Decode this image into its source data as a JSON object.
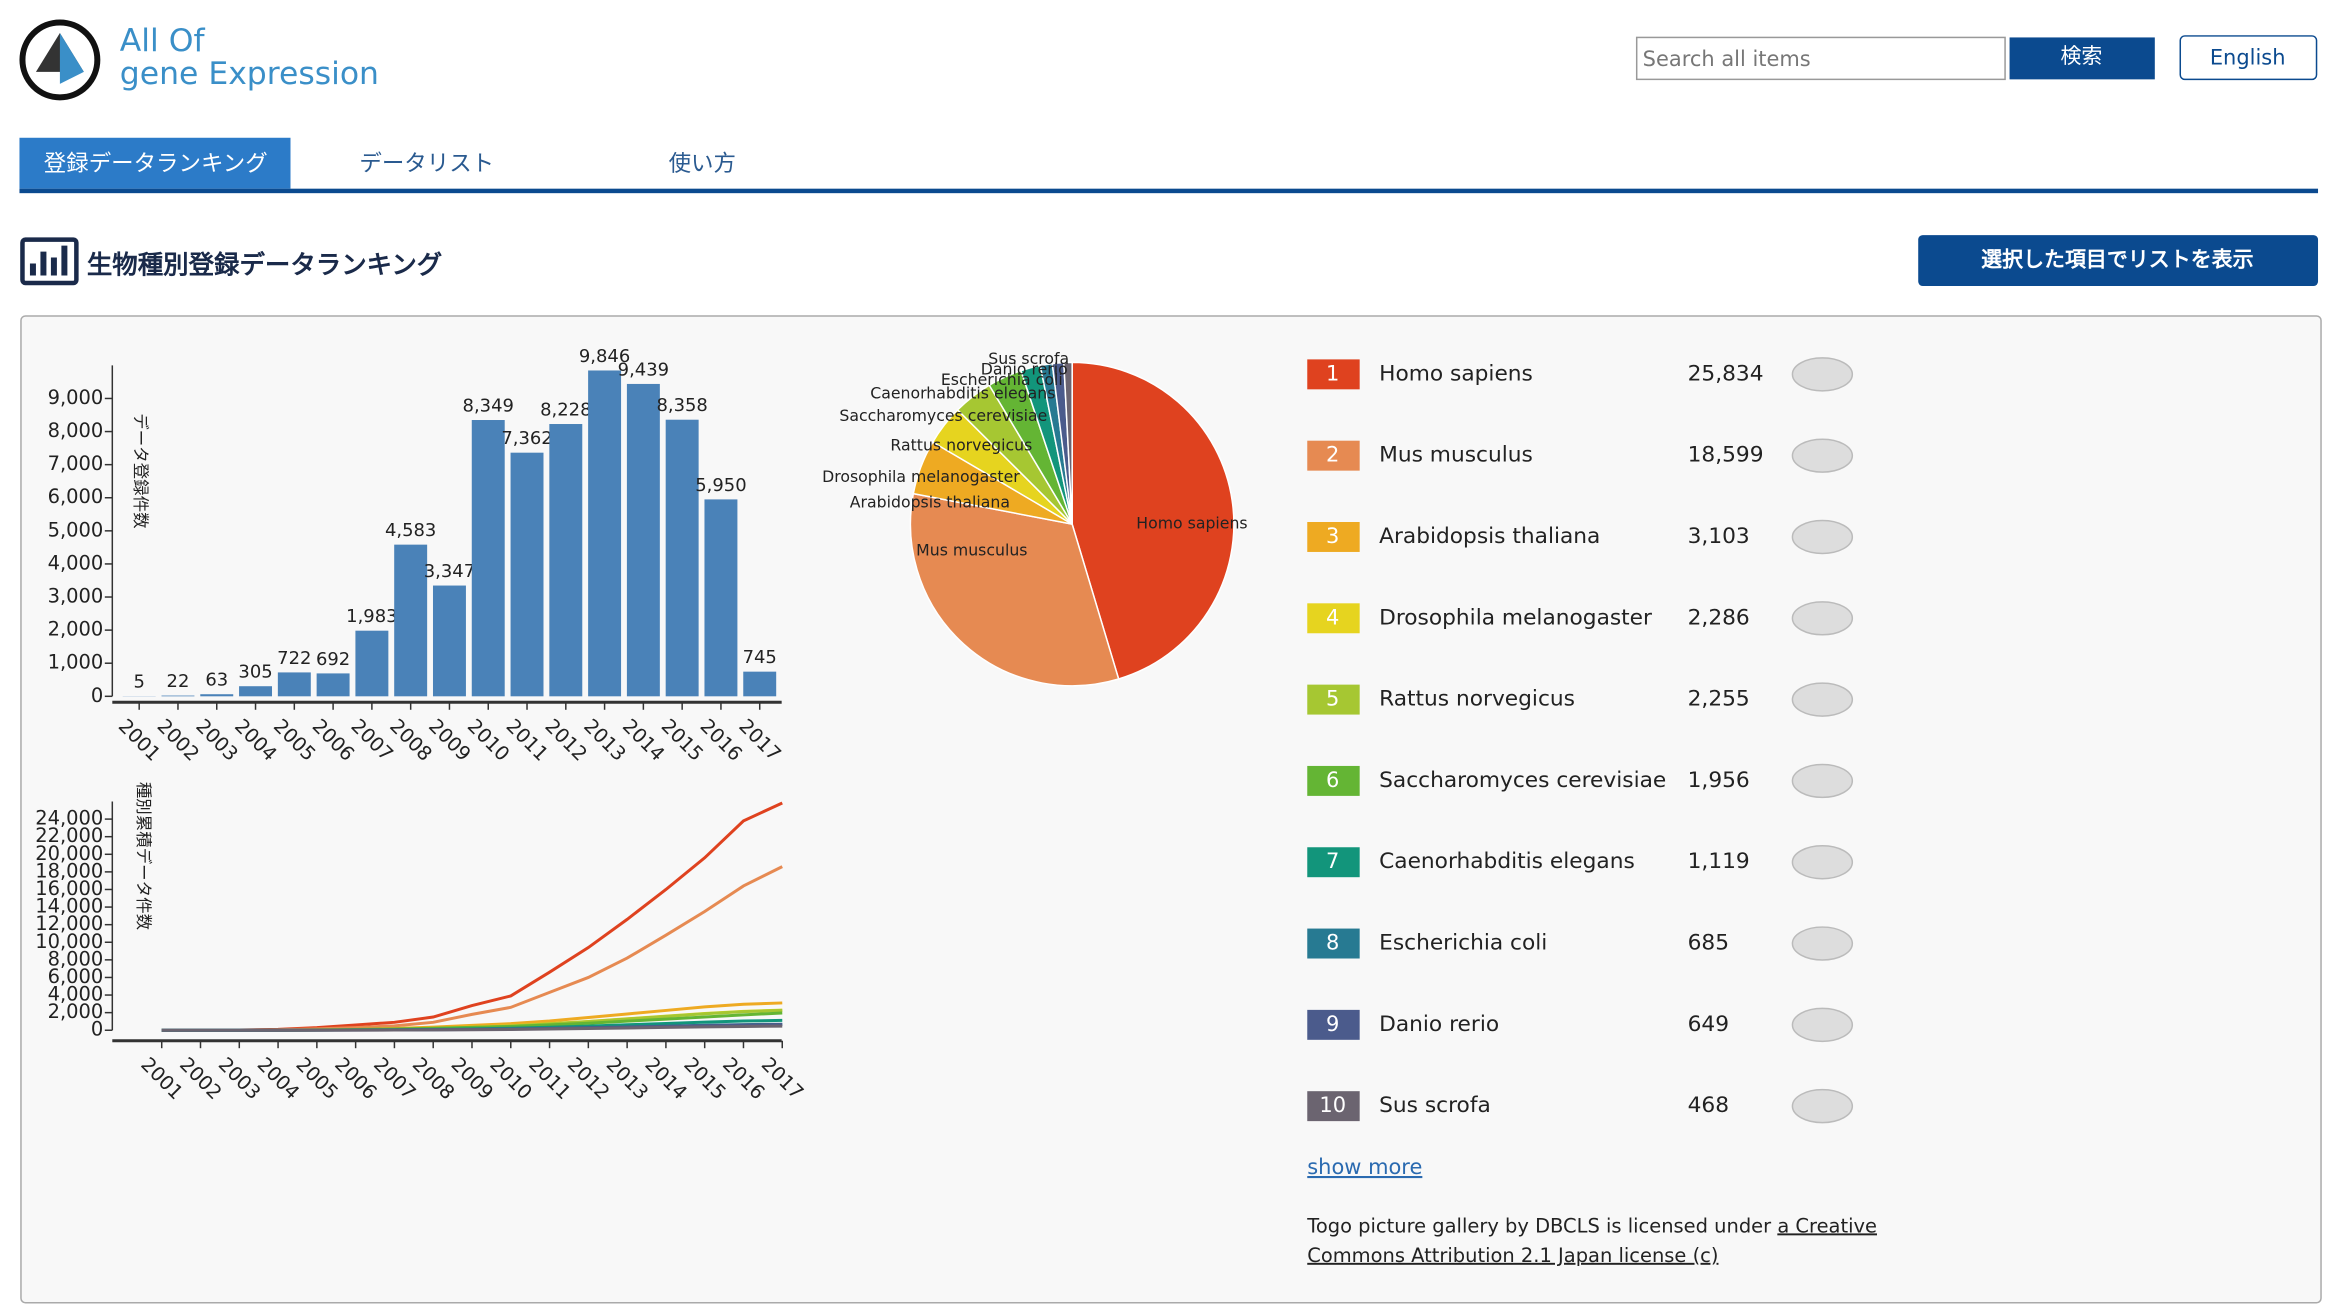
{
  "header": {
    "logo_line1": "All Of",
    "logo_line2": "gene Expression",
    "search_placeholder": "Search all items",
    "search_button": "検索",
    "language_button": "English"
  },
  "tabs": [
    "登録データランキング",
    "データリスト",
    "使い方"
  ],
  "section": {
    "title": "生物種別登録データランキング",
    "list_button": "選択した項目でリストを表示"
  },
  "chart_data": [
    {
      "type": "bar",
      "y_label": "データ登録件数",
      "color": "#4a82b8",
      "categories": [
        "2001",
        "2002",
        "2003",
        "2004",
        "2005",
        "2006",
        "2007",
        "2008",
        "2009",
        "2010",
        "2011",
        "2012",
        "2013",
        "2014",
        "2015",
        "2016",
        "2017"
      ],
      "values": [
        5,
        22,
        63,
        305,
        722,
        692,
        1983,
        4583,
        3347,
        8349,
        7362,
        8228,
        9846,
        9439,
        8358,
        5950,
        745
      ],
      "value_labels": [
        "5",
        "22",
        "63",
        "305",
        "722",
        "692",
        "1,983",
        "4,583",
        "3,347",
        "8,349",
        "7,362",
        "8,228",
        "9,846",
        "9,439",
        "8,358",
        "5,950",
        "745"
      ],
      "ylim": [
        0,
        10000
      ],
      "yticks": [
        0,
        {
          "value": 1000,
          "label": "1,000"
        },
        {
          "value": 2000,
          "label": "2,000"
        },
        {
          "value": 3000,
          "label": "3,000"
        },
        {
          "value": 4000,
          "label": "4,000"
        },
        {
          "value": 5000,
          "label": "5,000"
        },
        {
          "value": 6000,
          "label": "6,000"
        },
        {
          "value": 7000,
          "label": "7,000"
        },
        {
          "value": 8000,
          "label": "8,000"
        },
        {
          "value": 9000,
          "label": "9,000"
        }
      ]
    },
    {
      "type": "pie",
      "categories": [
        "Homo sapiens",
        "Mus musculus",
        "Arabidopsis thaliana",
        "Drosophila melanogaster",
        "Rattus norvegicus",
        "Saccharomyces cerevisiae",
        "Caenorhabditis elegans",
        "Escherichia coli",
        "Danio rerio",
        "Sus scrofa"
      ],
      "values": [
        25834,
        18599,
        3103,
        2286,
        2255,
        1956,
        1119,
        685,
        649,
        468
      ],
      "colors": [
        "#df421f",
        "#e68a52",
        "#eeaa22",
        "#e6d41f",
        "#a6c732",
        "#64b534",
        "#12957b",
        "#277a92",
        "#4b5b8c",
        "#6b6470"
      ]
    },
    {
      "type": "line",
      "y_label": "種別累積データ件数",
      "categories": [
        "2001",
        "2002",
        "2003",
        "2004",
        "2005",
        "2006",
        "2007",
        "2008",
        "2009",
        "2010",
        "2011",
        "2012",
        "2013",
        "2014",
        "2015",
        "2016",
        "2017"
      ],
      "ylim": [
        0,
        26000
      ],
      "yticks": [
        0,
        {
          "value": 2000,
          "label": "2,000"
        },
        {
          "value": 4000,
          "label": "4,000"
        },
        {
          "value": 6000,
          "label": "6,000"
        },
        {
          "value": 8000,
          "label": "8,000"
        },
        {
          "value": 10000,
          "label": "10,000"
        },
        {
          "value": 12000,
          "label": "12,000"
        },
        {
          "value": 14000,
          "label": "14,000"
        },
        {
          "value": 16000,
          "label": "16,000"
        },
        {
          "value": 18000,
          "label": "18,000"
        },
        {
          "value": 20000,
          "label": "20,000"
        },
        {
          "value": 22000,
          "label": "22,000"
        },
        {
          "value": 24000,
          "label": "24,000"
        }
      ],
      "series": [
        {
          "color": "#df421f",
          "values": [
            0,
            5,
            25,
            100,
            300,
            600,
            900,
            1500,
            2800,
            3900,
            6600,
            9400,
            12600,
            16000,
            19600,
            23800,
            25834
          ]
        },
        {
          "color": "#e68a52",
          "values": [
            0,
            0,
            10,
            50,
            150,
            300,
            500,
            900,
            1800,
            2600,
            4300,
            6000,
            8200,
            10800,
            13500,
            16400,
            18599
          ]
        },
        {
          "color": "#eeaa22",
          "values": [
            0,
            0,
            0,
            10,
            50,
            100,
            200,
            350,
            550,
            750,
            1050,
            1450,
            1850,
            2250,
            2650,
            2950,
            3103
          ]
        },
        {
          "color": "#e6d41f",
          "values": [
            0,
            0,
            0,
            5,
            30,
            70,
            130,
            220,
            350,
            500,
            750,
            1000,
            1300,
            1600,
            1900,
            2150,
            2286
          ]
        },
        {
          "color": "#a6c732",
          "values": [
            0,
            0,
            0,
            5,
            20,
            60,
            120,
            200,
            330,
            480,
            720,
            980,
            1280,
            1580,
            1880,
            2120,
            2255
          ]
        },
        {
          "color": "#64b534",
          "values": [
            0,
            0,
            5,
            15,
            40,
            80,
            140,
            220,
            320,
            430,
            610,
            800,
            1030,
            1260,
            1500,
            1750,
            1956
          ]
        },
        {
          "color": "#12957b",
          "values": [
            0,
            0,
            0,
            5,
            15,
            35,
            60,
            100,
            160,
            230,
            340,
            470,
            620,
            770,
            920,
            1050,
            1119
          ]
        },
        {
          "color": "#277a92",
          "values": [
            0,
            0,
            0,
            2,
            8,
            20,
            35,
            60,
            95,
            140,
            210,
            290,
            380,
            470,
            560,
            640,
            685
          ]
        },
        {
          "color": "#4b5b8c",
          "values": [
            0,
            0,
            0,
            2,
            6,
            15,
            30,
            55,
            90,
            130,
            200,
            280,
            360,
            440,
            520,
            600,
            649
          ]
        },
        {
          "color": "#6b6470",
          "values": [
            0,
            0,
            0,
            1,
            4,
            10,
            20,
            35,
            60,
            90,
            140,
            200,
            260,
            320,
            380,
            430,
            468
          ]
        }
      ]
    }
  ],
  "ranking": [
    {
      "rank": 1,
      "name": "Homo sapiens",
      "count": "25,834"
    },
    {
      "rank": 2,
      "name": "Mus musculus",
      "count": "18,599"
    },
    {
      "rank": 3,
      "name": "Arabidopsis thaliana",
      "count": "3,103"
    },
    {
      "rank": 4,
      "name": "Drosophila melanogaster",
      "count": "2,286"
    },
    {
      "rank": 5,
      "name": "Rattus norvegicus",
      "count": "2,255"
    },
    {
      "rank": 6,
      "name": "Saccharomyces cerevisiae",
      "count": "1,956"
    },
    {
      "rank": 7,
      "name": "Caenorhabditis elegans",
      "count": "1,119"
    },
    {
      "rank": 8,
      "name": "Escherichia coli",
      "count": "685"
    },
    {
      "rank": 9,
      "name": "Danio rerio",
      "count": "649"
    },
    {
      "rank": 10,
      "name": "Sus scrofa",
      "count": "468"
    }
  ],
  "show_more": "show more",
  "license": {
    "text": "Togo picture gallery by DBCLS is licensed under ",
    "link": [
      "a Creative",
      "Commons Attribution 2.1 Japan license (c)"
    ]
  }
}
